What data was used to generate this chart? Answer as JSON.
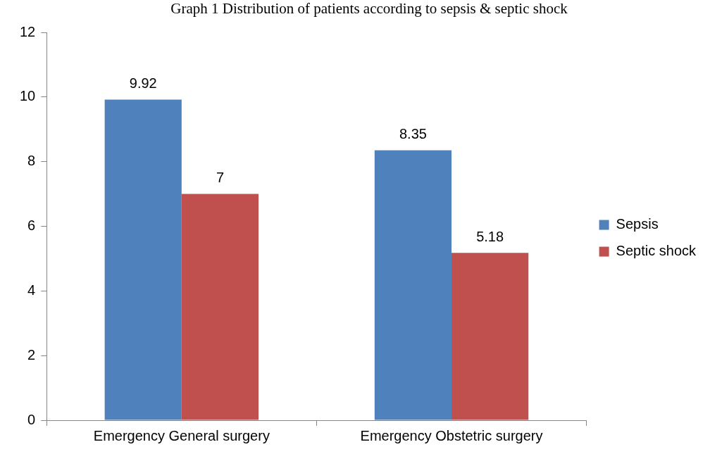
{
  "chart_data": {
    "type": "bar",
    "title": "Graph 1 Distribution of patients according to sepsis & septic shock",
    "categories": [
      "Emergency General surgery",
      "Emergency Obstetric surgery"
    ],
    "series": [
      {
        "name": "Sepsis",
        "color": "#4f81bd",
        "values": [
          9.92,
          8.35
        ]
      },
      {
        "name": "Septic shock",
        "color": "#c0504d",
        "values": [
          7,
          5.18
        ]
      }
    ],
    "ylim": [
      0,
      12
    ],
    "yticks": [
      0,
      2,
      4,
      6,
      8,
      10,
      12
    ],
    "grid": false,
    "legend": "right",
    "data_labels": true
  }
}
